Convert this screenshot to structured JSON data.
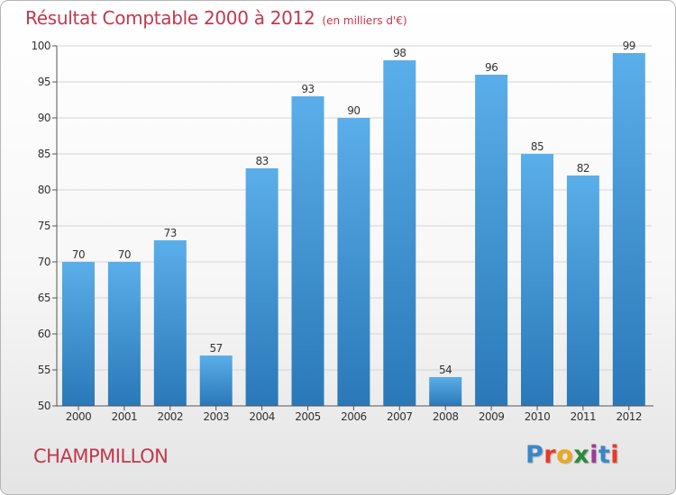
{
  "chart_data": {
    "type": "bar",
    "title": "Résultat Comptable 2000 à 2012",
    "unit_label": "(en milliers d'€)",
    "categories": [
      "2000",
      "2001",
      "2002",
      "2003",
      "2004",
      "2005",
      "2006",
      "2007",
      "2008",
      "2009",
      "2010",
      "2011",
      "2012"
    ],
    "values": [
      70,
      70,
      73,
      57,
      83,
      93,
      90,
      98,
      54,
      96,
      85,
      82,
      99
    ],
    "ylim": [
      50,
      100
    ],
    "yticks": [
      50,
      55,
      60,
      65,
      70,
      75,
      80,
      85,
      90,
      95,
      100
    ],
    "grid": true,
    "xlabel": "",
    "ylabel": ""
  },
  "footer": {
    "commune": "CHAMPMILLON",
    "logo_letters": [
      "P",
      "r",
      "o",
      "x",
      "i",
      "t",
      "i"
    ]
  },
  "colors": {
    "title": "#c0394f",
    "bar_top": "#5aaee9",
    "bar_bottom": "#2a78b8",
    "grid": "#d4d4d4",
    "axis": "#555555",
    "logo": [
      "#3b86c8",
      "#e8392a",
      "#f0a818",
      "#2c8a3a",
      "#9b3c9a",
      "#3b86c8",
      "#e8392a"
    ]
  }
}
